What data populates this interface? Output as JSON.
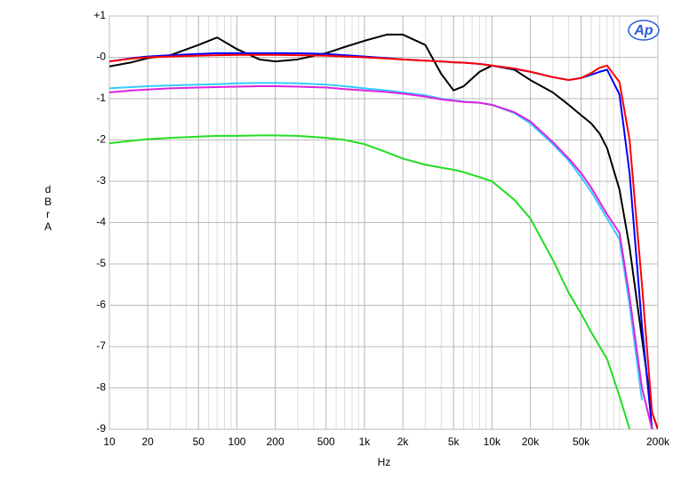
{
  "chart_data": {
    "type": "line",
    "logo": "Ap",
    "xlabel": "Hz",
    "ylabel": "dBr A",
    "xscale": "log",
    "grid": true,
    "xlim": [
      10,
      200000
    ],
    "ylim": [
      -9,
      1
    ],
    "xticks": [
      10,
      20,
      50,
      100,
      200,
      500,
      {
        "value": 1000,
        "label": "1k"
      },
      {
        "value": 2000,
        "label": "2k"
      },
      {
        "value": 5000,
        "label": "5k"
      },
      {
        "value": 10000,
        "label": "10k"
      },
      {
        "value": 20000,
        "label": "20k"
      },
      {
        "value": 50000,
        "label": "50k"
      },
      {
        "value": 200000,
        "label": "200k"
      }
    ],
    "yticks": [
      {
        "value": 1,
        "label": "+1"
      },
      {
        "value": 0,
        "label": "-0"
      },
      -1,
      -2,
      -3,
      -4,
      -5,
      -6,
      -7,
      -8,
      -9
    ],
    "x": [
      10,
      15,
      20,
      30,
      50,
      70,
      100,
      150,
      200,
      300,
      500,
      700,
      1000,
      1500,
      2000,
      3000,
      4000,
      5000,
      6000,
      8000,
      10000,
      15000,
      20000,
      30000,
      40000,
      50000,
      60000,
      70000,
      80000,
      100000,
      120000,
      150000,
      180000,
      200000
    ],
    "series": [
      {
        "color": "#000000",
        "values": [
          -0.22,
          -0.12,
          -0.02,
          0.05,
          0.3,
          0.48,
          0.2,
          -0.05,
          -0.1,
          -0.05,
          0.1,
          0.25,
          0.4,
          0.55,
          0.55,
          0.3,
          -0.4,
          -0.8,
          -0.7,
          -0.35,
          -0.2,
          -0.3,
          -0.55,
          -0.85,
          -1.15,
          -1.4,
          -1.6,
          -1.85,
          -2.2,
          -3.2,
          -4.6,
          -6.8,
          -8.6,
          -9
        ]
      },
      {
        "color": "#0000ff",
        "values": [
          -0.1,
          -0.02,
          0.02,
          0.05,
          0.08,
          0.1,
          0.1,
          0.1,
          0.1,
          0.1,
          0.08,
          0.05,
          0.02,
          -0.02,
          -0.05,
          -0.08,
          -0.1,
          -0.12,
          -0.13,
          -0.16,
          -0.2,
          -0.28,
          -0.35,
          -0.48,
          -0.55,
          -0.5,
          -0.42,
          -0.35,
          -0.3,
          -0.9,
          -2.8,
          -6.5,
          -9,
          null
        ]
      },
      {
        "color": "#ff0000",
        "values": [
          -0.1,
          -0.03,
          0,
          0.02,
          0.04,
          0.05,
          0.06,
          0.06,
          0.06,
          0.05,
          0.04,
          0.02,
          0,
          -0.03,
          -0.05,
          -0.08,
          -0.1,
          -0.12,
          -0.13,
          -0.16,
          -0.2,
          -0.27,
          -0.35,
          -0.48,
          -0.55,
          -0.5,
          -0.38,
          -0.25,
          -0.2,
          -0.6,
          -2.0,
          -5.5,
          -8.6,
          -9
        ]
      },
      {
        "color": "#33ccff",
        "values": [
          -0.75,
          -0.72,
          -0.7,
          -0.68,
          -0.66,
          -0.65,
          -0.63,
          -0.62,
          -0.62,
          -0.63,
          -0.66,
          -0.7,
          -0.75,
          -0.8,
          -0.85,
          -0.92,
          -1.0,
          -1.04,
          -1.07,
          -1.1,
          -1.15,
          -1.35,
          -1.6,
          -2.1,
          -2.5,
          -2.9,
          -3.25,
          -3.6,
          -3.9,
          -4.4,
          -6.0,
          -8.3,
          null,
          null
        ]
      },
      {
        "color": "#dd22dd",
        "values": [
          -0.85,
          -0.8,
          -0.78,
          -0.75,
          -0.73,
          -0.72,
          -0.71,
          -0.7,
          -0.7,
          -0.71,
          -0.73,
          -0.77,
          -0.8,
          -0.84,
          -0.88,
          -0.95,
          -1.02,
          -1.05,
          -1.08,
          -1.1,
          -1.15,
          -1.33,
          -1.55,
          -2.05,
          -2.45,
          -2.8,
          -3.15,
          -3.5,
          -3.8,
          -4.25,
          -5.8,
          -8.0,
          -9,
          null
        ]
      },
      {
        "color": "#22dd22",
        "values": [
          -2.08,
          -2.02,
          -1.98,
          -1.95,
          -1.92,
          -1.9,
          -1.9,
          -1.89,
          -1.89,
          -1.9,
          -1.95,
          -2.0,
          -2.1,
          -2.3,
          -2.45,
          -2.6,
          -2.67,
          -2.72,
          -2.78,
          -2.9,
          -3.0,
          -3.45,
          -3.9,
          -4.9,
          -5.7,
          -6.2,
          -6.65,
          -7.0,
          -7.3,
          -8.2,
          -9,
          null,
          null,
          null
        ]
      }
    ]
  }
}
